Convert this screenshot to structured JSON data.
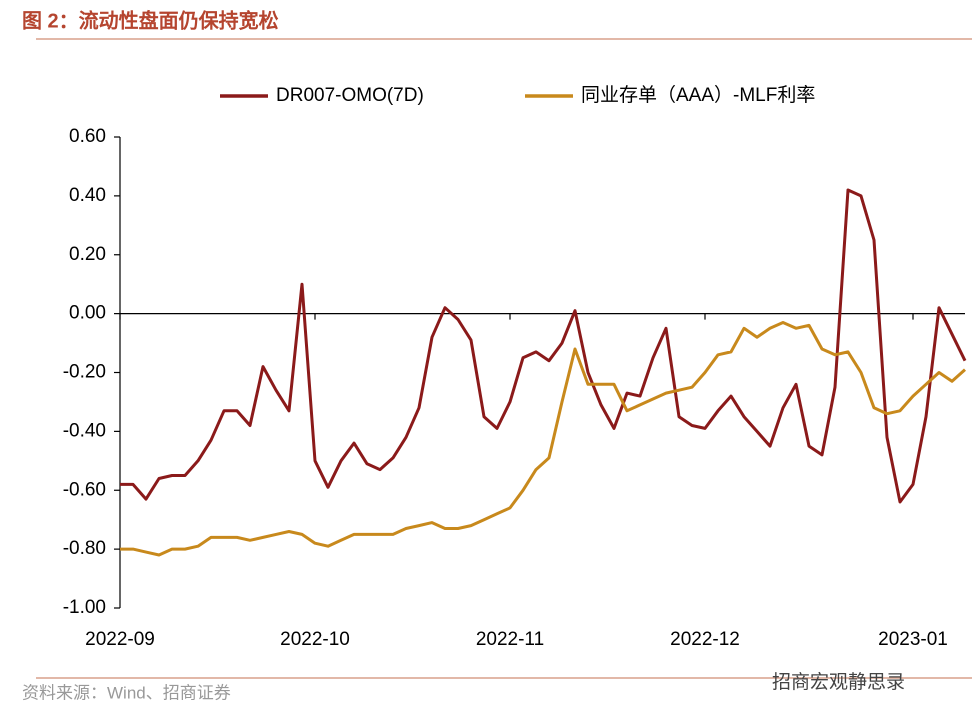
{
  "chart_data": {
    "type": "line",
    "title": "图 2：流动性盘面仍保持宽松",
    "source": "资料来源：Wind、招商证券",
    "watermark": "招商宏观静思录",
    "legend": "top",
    "categories": [
      "2022-09",
      null,
      null,
      null,
      null,
      null,
      null,
      null,
      null,
      null,
      null,
      null,
      null,
      null,
      null,
      "2022-10",
      null,
      null,
      null,
      null,
      null,
      null,
      null,
      null,
      null,
      null,
      null,
      null,
      null,
      null,
      "2022-11",
      null,
      null,
      null,
      null,
      null,
      null,
      null,
      null,
      null,
      null,
      null,
      null,
      null,
      null,
      "2022-12",
      null,
      null,
      null,
      null,
      null,
      null,
      null,
      null,
      null,
      null,
      null,
      null,
      null,
      null,
      null,
      "2023-01",
      null,
      null,
      null,
      null
    ],
    "series": [
      {
        "name": "DR007-OMO(7D)",
        "color": "#8b1a1a",
        "values": [
          -0.58,
          -0.58,
          -0.63,
          -0.56,
          -0.55,
          -0.55,
          -0.5,
          -0.43,
          -0.33,
          -0.33,
          -0.38,
          -0.18,
          -0.26,
          -0.33,
          0.1,
          -0.5,
          -0.59,
          -0.5,
          -0.44,
          -0.51,
          -0.53,
          -0.49,
          -0.42,
          -0.32,
          -0.08,
          0.02,
          -0.02,
          -0.09,
          -0.35,
          -0.39,
          -0.3,
          -0.15,
          -0.13,
          -0.16,
          -0.1,
          0.01,
          -0.2,
          -0.31,
          -0.39,
          -0.27,
          -0.28,
          -0.15,
          -0.05,
          -0.35,
          -0.38,
          -0.39,
          -0.33,
          -0.28,
          -0.35,
          -0.4,
          -0.45,
          -0.32,
          -0.24,
          -0.45,
          -0.48,
          -0.25,
          0.42,
          0.4,
          0.25,
          -0.42,
          -0.64,
          -0.58,
          -0.35,
          0.02,
          -0.07,
          -0.16
        ]
      },
      {
        "name": "同业存单（AAA）-MLF利率",
        "color": "#c8891c",
        "values": [
          -0.8,
          -0.8,
          -0.81,
          -0.82,
          -0.8,
          -0.8,
          -0.79,
          -0.76,
          -0.76,
          -0.76,
          -0.77,
          -0.76,
          -0.75,
          -0.74,
          -0.75,
          -0.78,
          -0.79,
          -0.77,
          -0.75,
          -0.75,
          -0.75,
          -0.75,
          -0.73,
          -0.72,
          -0.71,
          -0.73,
          -0.73,
          -0.72,
          -0.7,
          -0.68,
          -0.66,
          -0.6,
          -0.53,
          -0.49,
          -0.3,
          -0.12,
          -0.24,
          -0.24,
          -0.24,
          -0.33,
          -0.31,
          -0.29,
          -0.27,
          -0.26,
          -0.25,
          -0.2,
          -0.14,
          -0.13,
          -0.05,
          -0.08,
          -0.05,
          -0.03,
          -0.05,
          -0.04,
          -0.12,
          -0.14,
          -0.13,
          -0.2,
          -0.32,
          -0.34,
          -0.33,
          -0.28,
          -0.24,
          -0.2,
          -0.23,
          -0.19
        ]
      }
    ],
    "ylim": [
      -1.0,
      0.6
    ],
    "yticks": [
      {
        "value": 0.6,
        "label": "0.60"
      },
      {
        "value": 0.4,
        "label": "0.40"
      },
      {
        "value": 0.2,
        "label": "0.20"
      },
      {
        "value": 0,
        "label": "0.00"
      },
      {
        "value": -0.2,
        "label": "-0.20"
      },
      {
        "value": -0.4,
        "label": "-0.40"
      },
      {
        "value": -0.6,
        "label": "-0.60"
      },
      {
        "value": -0.8,
        "label": "-0.80"
      },
      {
        "value": -1.0,
        "label": "-1.00"
      }
    ]
  }
}
